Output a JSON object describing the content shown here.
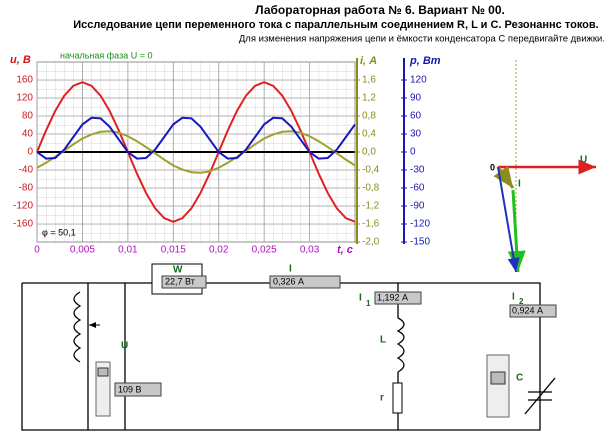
{
  "header": {
    "title": "Лабораторная работа № 6. Вариант № 00.",
    "subtitle": "Исследование цепи переменного тока с параллельным соединением R, L и C. Резонаннс токов.",
    "hint": "Для изменения напряжения цепи и ёмкости конденсатора С передвигайте движки."
  },
  "chart_data": {
    "type": "line",
    "annotation": "начальная фаза U = 0",
    "phase_label": "φ = 50,1",
    "xlabel": "t, c",
    "ylabel": "u, В",
    "y2label": "i, А",
    "y3label": "p, Вт",
    "x": [
      0,
      0.001,
      0.002,
      0.003,
      0.004,
      0.005,
      0.006,
      0.007,
      0.008,
      0.009,
      0.01,
      0.011,
      0.012,
      0.013,
      0.014,
      0.015,
      0.016,
      0.017,
      0.018,
      0.019,
      0.02,
      0.021,
      0.022,
      0.023,
      0.024,
      0.025,
      0.026,
      0.027,
      0.028,
      0.029,
      0.03,
      0.031,
      0.032,
      0.033,
      0.034,
      0.035
    ],
    "xlim": [
      0,
      0.035
    ],
    "xticks": [
      0,
      {
        "value": 0.005,
        "label": "0,005"
      },
      {
        "value": 0.01,
        "label": "0,01"
      },
      {
        "value": 0.015,
        "label": "0,015"
      },
      {
        "value": 0.02,
        "label": "0,02"
      },
      {
        "value": 0.025,
        "label": "0,025"
      },
      {
        "value": 0.03,
        "label": "0,03"
      }
    ],
    "ylim": [
      -200,
      200
    ],
    "yticks": [
      160,
      120,
      80,
      40,
      0,
      -40,
      -80,
      -120,
      -160
    ],
    "y2lim": [
      -2,
      2
    ],
    "y2ticks": [
      {
        "value": 1.6,
        "label": "1,6"
      },
      {
        "value": 1.2,
        "label": "1,2"
      },
      {
        "value": 0.8,
        "label": "0,8"
      },
      {
        "value": 0.4,
        "label": "0,4"
      },
      {
        "value": 0,
        "label": "0,0"
      },
      {
        "value": -0.4,
        "label": "-0,4"
      },
      {
        "value": -0.8,
        "label": "-0,8"
      },
      {
        "value": -1.2,
        "label": "-1,2"
      },
      {
        "value": -1.6,
        "label": "-1,6"
      },
      {
        "value": -2,
        "label": "-2,0"
      }
    ],
    "y3lim": [
      -150,
      150
    ],
    "y3ticks": [
      120,
      90,
      60,
      30,
      0,
      -30,
      -60,
      -90,
      -120,
      -150
    ],
    "grid": true,
    "series": [
      {
        "axis": "y",
        "color": "#e02020",
        "values": [
          0,
          48,
          91,
          125,
          147,
          155,
          147,
          125,
          91,
          48,
          0,
          -48,
          -91,
          -125,
          -147,
          -155,
          -147,
          -125,
          -91,
          -48,
          0,
          48,
          91,
          125,
          147,
          155,
          147,
          125,
          91,
          48,
          0,
          -48,
          -91,
          -125,
          -147,
          -155
        ]
      },
      {
        "axis": "y2",
        "color": "#a0a030",
        "values": [
          -0.35,
          -0.24,
          -0.11,
          0.03,
          0.17,
          0.3,
          0.39,
          0.45,
          0.46,
          0.43,
          0.35,
          0.24,
          0.11,
          -0.03,
          -0.17,
          -0.3,
          -0.39,
          -0.45,
          -0.46,
          -0.43,
          -0.35,
          -0.24,
          -0.11,
          0.03,
          0.17,
          0.3,
          0.39,
          0.45,
          0.46,
          0.43,
          0.35,
          0.24,
          0.11,
          -0.03,
          -0.17,
          -0.3
        ]
      },
      {
        "axis": "y3",
        "color": "#1818c0",
        "values": [
          0,
          -11,
          -10,
          4,
          25,
          46,
          57,
          56,
          42,
          21,
          0,
          -11,
          -10,
          4,
          25,
          46,
          57,
          56,
          42,
          21,
          0,
          -11,
          -10,
          4,
          25,
          46,
          57,
          56,
          42,
          21,
          0,
          -11,
          -10,
          4,
          25,
          46
        ]
      }
    ]
  },
  "phasor": {
    "origin": "0",
    "voltage": "U",
    "current": "I"
  },
  "circuit": {
    "wattmeter": {
      "label": "W",
      "reading": "22,7 Вт"
    },
    "ammeter": {
      "label": "I",
      "reading": "0,326 А"
    },
    "ammeter1": {
      "label": "I",
      "subscript": "1",
      "reading": "1,192 А"
    },
    "ammeter2": {
      "label": "I",
      "subscript": "2",
      "reading": "0,924 А"
    },
    "voltmeter": {
      "label": "U",
      "reading": "109 В"
    },
    "inductor": "L",
    "resistor": "r",
    "capacitor": "C"
  }
}
